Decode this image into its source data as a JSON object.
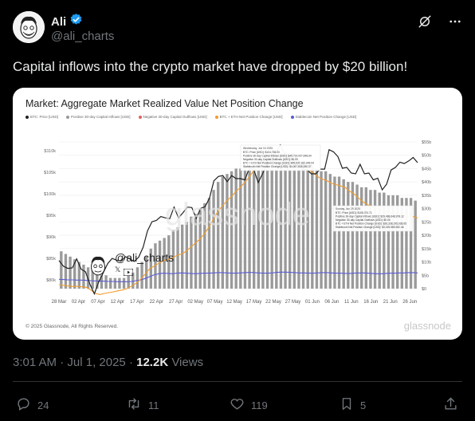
{
  "author": {
    "name": "Ali",
    "handle": "@ali_charts"
  },
  "tweet": {
    "text": "Capital inflows into the crypto market have dropped by $20 billion!"
  },
  "card": {
    "copyright": "© 2025 Glassnode, All Rights Reserved.",
    "logo": "glassnode",
    "watermark_handle": "@ali_charts"
  },
  "meta": {
    "time": "3:01 AM",
    "date": "Jul 1, 2025",
    "views": "12.2K",
    "views_label": "Views"
  },
  "actions": {
    "replies": "24",
    "reposts": "11",
    "likes": "119",
    "bookmarks": "5"
  },
  "colors": {
    "verified": "#1d9bf0",
    "price": "#222222",
    "netchange": "#f39c2a",
    "stable": "#5b5bd6",
    "bars": "#9a9a9a"
  },
  "chart_data": {
    "type": "bar",
    "title": "Market: Aggregate Market Realized Value Net Position Change",
    "legend": [
      {
        "name": "BTC: Price [USD]",
        "color": "#222222"
      },
      {
        "name": "Positive 30-day Capital Inflows [USD]",
        "color": "#9a9a9a"
      },
      {
        "name": "Negative 30-day Capital Outflows [USD]",
        "color": "#e06060"
      },
      {
        "name": "BTC + ETH Net Position Change [USD]",
        "color": "#f39c2a"
      },
      {
        "name": "Stablecoin Net Position Change [USD]",
        "color": "#5b5bd6"
      }
    ],
    "x_ticks": [
      "28 Mar",
      "02 Apr",
      "07 Apr",
      "12 Apr",
      "17 Apr",
      "22 Apr",
      "27 Apr",
      "02 May",
      "07 May",
      "12 May",
      "17 May",
      "22 May",
      "27 May",
      "01 Jun",
      "06 Jun",
      "11 Jun",
      "16 Jun",
      "21 Jun",
      "26 Jun"
    ],
    "y_left_ticks": [
      "$80k",
      "$85k",
      "$90k",
      "$95k",
      "$100k",
      "$105k",
      "$110k"
    ],
    "y_right_ticks": [
      "$0",
      "$5b",
      "$10b",
      "$15b",
      "$20b",
      "$25b",
      "$30b",
      "$35b",
      "$40b",
      "$45b",
      "$50b",
      "$55b"
    ],
    "y_left_range": [
      78000,
      112000
    ],
    "y_right_range": [
      0,
      55
    ],
    "price": [
      84.5,
      83.2,
      82.7,
      82.8,
      84.9,
      82.5,
      81.9,
      79.0,
      76.8,
      79.6,
      81.7,
      83.8,
      85.0,
      84.6,
      84.4,
      85.4,
      84.9,
      84.3,
      85.3,
      87.6,
      91.4,
      93.5,
      93.8,
      94.7,
      94.4,
      94.2,
      96.9,
      94.4,
      95.6,
      96.9,
      96.8,
      94.3,
      96.6,
      97.0,
      99.0,
      103.0,
      104.0,
      104.2,
      102.8,
      104.2,
      103.5,
      103.5,
      103.2,
      106.0,
      105.6,
      102.6,
      104.7,
      106.8,
      107.3,
      109.5,
      111.3,
      109.1,
      108.4,
      109.3,
      107.8,
      105.6,
      105.6,
      104.6,
      104.6,
      105.7,
      105.7,
      110.2,
      109.7,
      108.6,
      105.9,
      106.1,
      104.8,
      104.6,
      106.8,
      104.6,
      104.8,
      103.2,
      103.6,
      100.9,
      102.2,
      105.5,
      106.1,
      107.3,
      107.0,
      107.6,
      108.4,
      107.2
    ],
    "net_change": [
      1.5,
      1.2,
      1.0,
      0.8,
      0.9,
      0.7,
      0.5,
      -0.5,
      -1.8,
      -2.2,
      -1.8,
      -1.5,
      -1.2,
      -0.8,
      -0.5,
      0.0,
      1.0,
      2.0,
      3.5,
      5.5,
      7.5,
      8.5,
      9.5,
      10.5,
      11.0,
      11.5,
      12.5,
      13.0,
      14.0,
      15.5,
      17.0,
      18.5,
      20.5,
      23.0,
      26.0,
      29.0,
      31.0,
      33.0,
      34.5,
      36.5,
      38.0,
      40.0,
      42.0,
      44.5,
      47.0,
      48.0,
      48.5,
      49.0,
      49.5,
      50.0,
      50.0,
      49.0,
      48.0,
      46.5,
      45.5,
      44.5,
      43.5,
      42.0,
      41.0,
      40.5,
      39.5,
      39.0,
      38.5,
      38.0,
      36.5,
      35.5,
      34.0,
      32.5,
      31.5,
      30.5,
      30.0,
      29.5,
      29.0,
      28.5,
      28.0,
      28.0,
      27.5,
      27.0,
      27.0,
      26.5
    ],
    "stable_change": [
      3.5,
      3.4,
      3.3,
      3.3,
      3.2,
      3.2,
      3.1,
      3.0,
      2.9,
      2.8,
      2.8,
      2.7,
      2.7,
      2.6,
      2.6,
      2.6,
      2.7,
      3.0,
      3.3,
      3.8,
      4.5,
      5.2,
      5.6,
      5.8,
      5.7,
      5.6,
      5.8,
      5.9,
      5.8,
      5.7,
      5.6,
      5.7,
      5.8,
      5.8,
      5.9,
      6.0,
      6.0,
      5.9,
      5.8,
      5.8,
      5.9,
      6.0,
      6.1,
      6.0,
      5.9,
      5.8,
      5.8,
      5.9,
      6.1,
      6.2,
      6.2,
      6.1,
      6.0,
      5.9,
      5.9,
      5.8,
      5.8,
      5.9,
      6.0,
      6.0,
      5.9,
      5.8,
      5.8,
      5.7,
      5.7,
      5.8,
      5.9,
      5.9,
      5.8,
      5.7,
      5.6,
      5.6,
      5.7,
      5.8,
      5.8,
      5.9,
      5.9,
      6.0,
      6.0,
      5.9
    ],
    "inflows": [
      14,
      13,
      12,
      11,
      10,
      9,
      8,
      7,
      6,
      5,
      5,
      4,
      4,
      4,
      4,
      5,
      6,
      8,
      10,
      12,
      15,
      17,
      18,
      19,
      20,
      22,
      23,
      24,
      25,
      27,
      28,
      30,
      32,
      34,
      37,
      40,
      42,
      43,
      44,
      45,
      45,
      46,
      46,
      47,
      48,
      48,
      49,
      50,
      50,
      51,
      51,
      50,
      49,
      48,
      48,
      47,
      46,
      45,
      44,
      44,
      43,
      42,
      42,
      41,
      40,
      40,
      39,
      38,
      38,
      37,
      37,
      36,
      36,
      35,
      35,
      35,
      34,
      34,
      34,
      33
    ],
    "tooltips": [
      {
        "date": "Wednesday, Jun 04 2025",
        "rows": [
          {
            "name": "BTC: Price [USD]",
            "value": "$104,738.00"
          },
          {
            "name": "Positive 30-day Capital Inflows [USD]",
            "value": "$49,714,007,648.64"
          },
          {
            "name": "Negative 30-day Capital Outflows [USD]",
            "value": "$0.00"
          },
          {
            "name": "BTC + ETH Net Position Change [USD]",
            "value": "$45,637,162,049.94"
          },
          {
            "name": "Stablecoin Net Position Change [USD]",
            "value": "$4,067,845,280.37"
          }
        ]
      },
      {
        "date": "Sunday, Jun 29 2025",
        "rows": [
          {
            "name": "BTC: Price [USD]",
            "value": "$108,374.71"
          },
          {
            "name": "Positive 30-day Capital Inflows [USD]",
            "value": "$29,498,648,978.12"
          },
          {
            "name": "Negative 30-day Capital Outflows [USD]",
            "value": "$0.00"
          },
          {
            "name": "BTC + ETH Net Position Change [USD]",
            "value": "$26,338,195,028.65"
          },
          {
            "name": "Stablecoin Net Position Change [USD]",
            "value": "$3,159,585,952.46"
          }
        ]
      }
    ]
  }
}
